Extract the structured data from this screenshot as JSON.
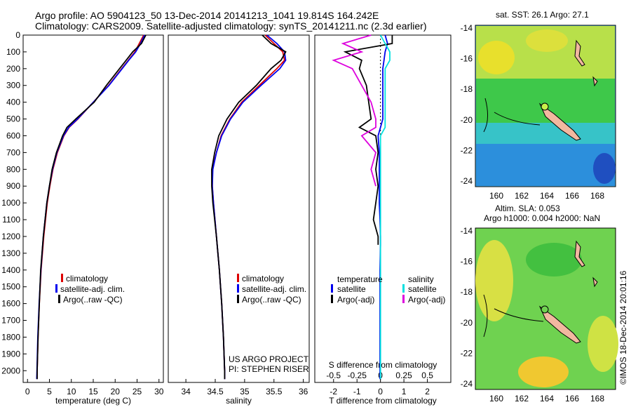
{
  "header": {
    "line1": "Argo profile: AO 5904123_50 13-Dec-2014 20141213_1041 19.814S 164.242E",
    "line2": "Climatology: CARS2009. Satellite-adjusted climatology: synTS_20141211.nc (2.3d earlier)"
  },
  "colors": {
    "climatology": "#dd0000",
    "satellite": "#0000ee",
    "argo": "#000000",
    "sal_satellite": "#00e0e0",
    "sal_argo": "#dd00dd"
  },
  "footer": {
    "project": "US ARGO PROJECT",
    "pi": "PI: STEPHEN RISER",
    "timestamp": "©IMOS 18-Dec-2014 20:01:16"
  },
  "legend_profiles": [
    "climatology",
    "satellite-adj. clim.",
    "Argo(..raw -QC)"
  ],
  "legend_diff": {
    "temp_title": "temperature",
    "sal_title": "salinity",
    "temp_items": [
      "satellite",
      "Argo(-adj)"
    ],
    "sal_items": [
      "satellite",
      "Argo(-adj)"
    ]
  },
  "map_sst": {
    "title": "sat. SST: 26.1  Argo: 27.1",
    "yticks": [
      "-14",
      "-16",
      "-18",
      "-20",
      "-22",
      "-24"
    ],
    "xticks": [
      "160",
      "162",
      "164",
      "166",
      "168"
    ]
  },
  "map_sla": {
    "title1": "Altim. SLA: 0.053",
    "title2": "Argo h1000: 0.004 h2000: NaN",
    "yticks": [
      "-14",
      "-16",
      "-18",
      "-20",
      "-22",
      "-24"
    ],
    "xticks": [
      "160",
      "162",
      "164",
      "166",
      "168"
    ]
  },
  "chart_data": [
    {
      "type": "line",
      "xlabel": "temperature (deg C)",
      "ylabel": "",
      "xlim": [
        -1,
        31
      ],
      "ylim": [
        2070,
        0
      ],
      "xticks": [
        "0",
        "5",
        "10",
        "15",
        "20",
        "25",
        "30"
      ],
      "yticks": [
        "0",
        "100",
        "200",
        "300",
        "400",
        "500",
        "600",
        "700",
        "800",
        "900",
        "1000",
        "1100",
        "1200",
        "1300",
        "1400",
        "1500",
        "1600",
        "1700",
        "1800",
        "1900",
        "2000"
      ],
      "depth": [
        0,
        50,
        100,
        150,
        200,
        300,
        400,
        500,
        550,
        600,
        700,
        800,
        900,
        1000,
        1200,
        1400,
        1600,
        1800,
        2000,
        2050
      ],
      "series": [
        {
          "name": "climatology",
          "values": [
            26.5,
            25.5,
            24.5,
            23.0,
            21.5,
            18.5,
            15.0,
            11.5,
            9.5,
            8.3,
            6.8,
            5.8,
            5.1,
            4.5,
            3.7,
            3.1,
            2.7,
            2.4,
            2.2,
            2.15
          ]
        },
        {
          "name": "satellite-adj. clim.",
          "values": [
            26.7,
            25.8,
            24.7,
            23.1,
            21.6,
            18.6,
            15.0,
            11.4,
            9.4,
            8.2,
            6.7,
            5.7,
            5.0,
            4.4,
            3.6,
            3.05,
            2.65,
            2.35,
            2.15,
            2.1
          ]
        },
        {
          "name": "Argo(..raw -QC)",
          "values": [
            27.0,
            26.0,
            24.0,
            22.5,
            21.0,
            18.0,
            15.2,
            11.0,
            9.0,
            8.0,
            6.6,
            5.6,
            5.0,
            4.4,
            3.6,
            3.0,
            2.7,
            2.4,
            2.2,
            2.2
          ]
        }
      ]
    },
    {
      "type": "line",
      "xlabel": "salinity",
      "ylabel": "",
      "xlim": [
        33.7,
        36.1
      ],
      "ylim": [
        2070,
        0
      ],
      "xticks": [
        "34",
        "34.5",
        "35",
        "35.5",
        "36"
      ],
      "depth": [
        0,
        50,
        100,
        150,
        200,
        300,
        400,
        500,
        600,
        700,
        800,
        900,
        1000,
        1200,
        1400,
        1600,
        1800,
        2000,
        2050
      ],
      "series": [
        {
          "name": "climatology",
          "values": [
            35.35,
            35.5,
            35.65,
            35.68,
            35.55,
            35.25,
            34.95,
            34.75,
            34.6,
            34.52,
            34.45,
            34.45,
            34.47,
            34.52,
            34.57,
            34.61,
            34.64,
            34.66,
            34.66
          ]
        },
        {
          "name": "satellite-adj. clim.",
          "values": [
            35.38,
            35.55,
            35.68,
            35.7,
            35.6,
            35.28,
            34.97,
            34.76,
            34.61,
            34.52,
            34.46,
            34.45,
            34.47,
            34.52,
            34.57,
            34.61,
            34.64,
            34.66,
            34.66
          ]
        },
        {
          "name": "Argo(..raw -QC)",
          "values": [
            35.3,
            35.45,
            35.7,
            35.62,
            35.45,
            35.2,
            34.9,
            34.7,
            34.56,
            34.49,
            34.44,
            34.44,
            34.46,
            34.52,
            34.57,
            34.61,
            34.64,
            34.66,
            34.66
          ]
        }
      ]
    },
    {
      "type": "line",
      "xlabel": "T difference from climatology",
      "xlabel_top": "S difference from climatology",
      "ylabel": "",
      "xlim": [
        -2.8,
        3.0
      ],
      "ylim": [
        2070,
        0
      ],
      "xticks": [
        "-2",
        "-1",
        "0",
        "1",
        "2"
      ],
      "xticks_top": [
        "-0.5",
        "-0.25",
        "0",
        "0.25",
        "0.5"
      ],
      "depth": [
        0,
        50,
        100,
        150,
        200,
        300,
        400,
        500,
        550,
        600,
        700,
        800,
        900,
        1000,
        1100,
        1200,
        1250,
        1400,
        1600,
        1800,
        2000,
        2050
      ],
      "series": [
        {
          "name": "temperature satellite",
          "values": [
            0.2,
            0.3,
            0.2,
            0.15,
            0.1,
            0.1,
            0.1,
            0.1,
            0.0,
            -0.1,
            -0.05,
            -0.05,
            -0.05,
            -0.05,
            -0.02,
            0.0,
            0.0,
            -0.02,
            -0.02,
            -0.02,
            -0.02,
            -0.02
          ]
        },
        {
          "name": "temperature Argo(-adj)",
          "values": [
            0.5,
            0.5,
            -1.5,
            -0.8,
            -0.9,
            -0.6,
            -0.5,
            -0.4,
            -0.9,
            -0.2,
            -0.1,
            -0.2,
            -0.1,
            -0.2,
            -0.3,
            -0.1,
            -0.1,
            null,
            null,
            null,
            null,
            null
          ]
        },
        {
          "name": "salinity satellite",
          "values": [
            0.0,
            0.05,
            0.1,
            0.1,
            0.05,
            0.05,
            0.05,
            0.05,
            0.05,
            0.0,
            0.0,
            0.0,
            0.0,
            0.0,
            0.0,
            0.0,
            0.0,
            0.0,
            0.0,
            0.0,
            0.0,
            0.0
          ]
        },
        {
          "name": "salinity Argo(-adj)",
          "values": [
            -0.1,
            -0.4,
            -0.2,
            -0.5,
            -0.3,
            -0.2,
            -0.1,
            -0.05,
            -0.05,
            -0.2,
            -0.05,
            -0.1,
            -0.05,
            null,
            null,
            null,
            null,
            null,
            null,
            null,
            null,
            null
          ]
        }
      ]
    }
  ]
}
